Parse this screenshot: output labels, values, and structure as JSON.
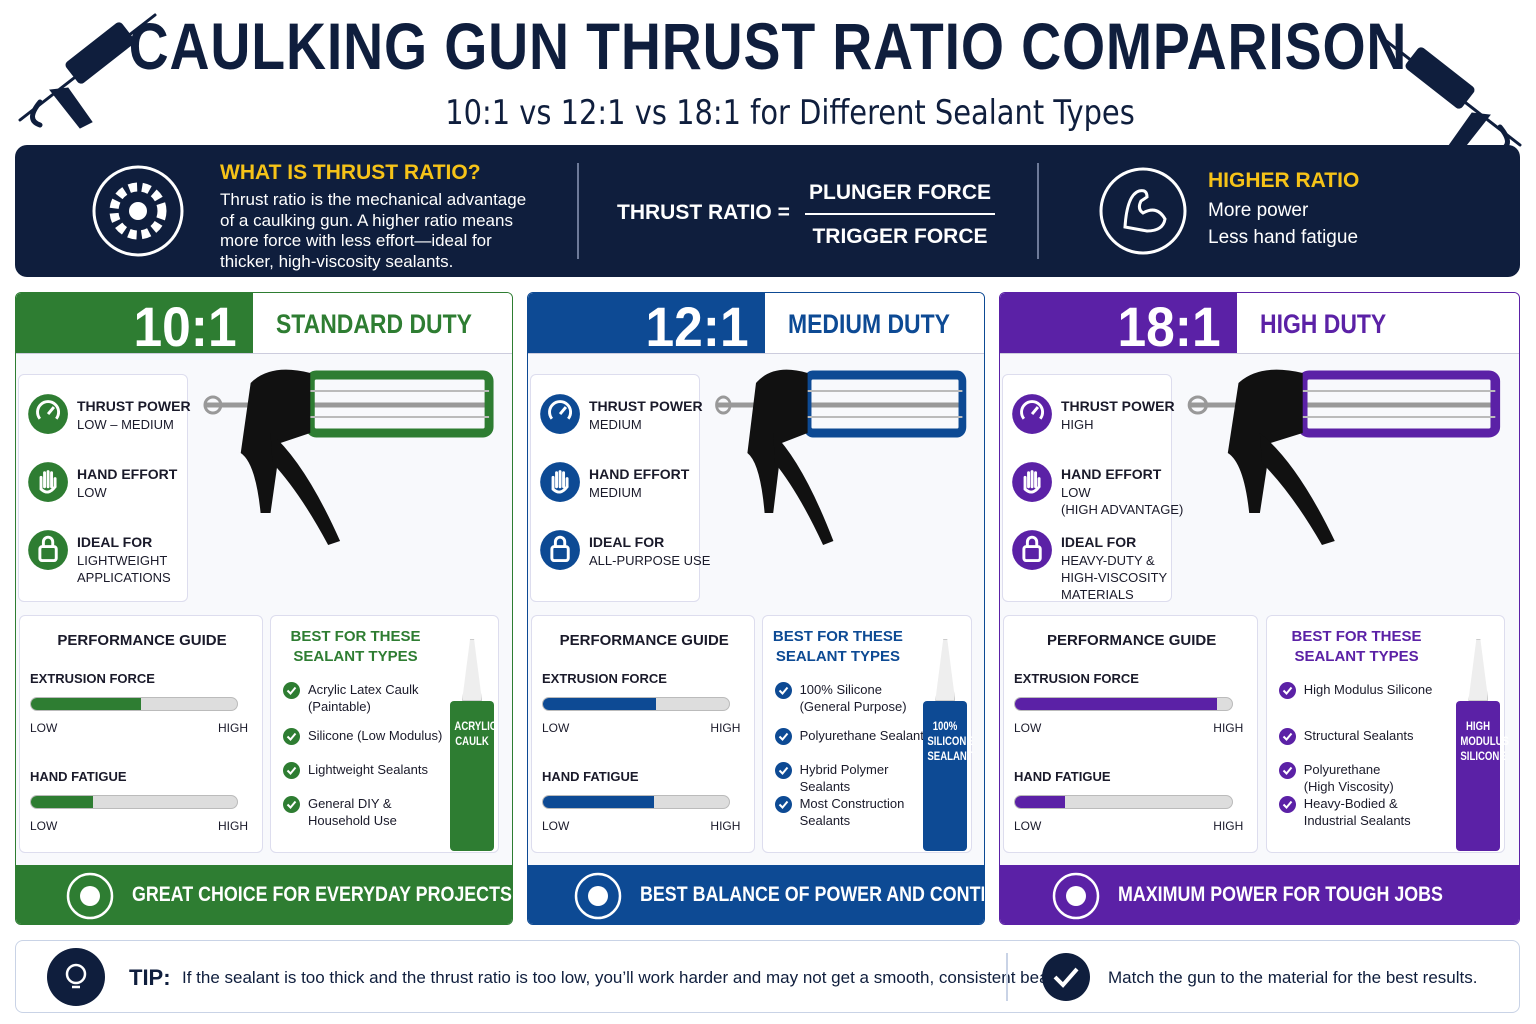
{
  "header": {
    "title": "CAULKING GUN THRUST RATIO COMPARISON",
    "subtitle": "10:1 vs 12:1 vs 18:1 for Different Sealant Types"
  },
  "intro": {
    "what_title": "WHAT IS THRUST RATIO?",
    "what_lines": [
      "Thrust ratio is the mechanical advantage",
      "of a caulking gun. A higher ratio means",
      "more force with less effort—ideal for",
      "thicker, high-viscosity sealants."
    ],
    "formula_label": "THRUST RATIO =",
    "numerator": "PLUNGER FORCE",
    "denominator": "TRIGGER FORCE",
    "higher_title": "HIGHER RATIO",
    "higher_lines": [
      "More power",
      "Less hand fatigue"
    ]
  },
  "panels": [
    {
      "ratio": "10:1",
      "duty": "STANDARD DUTY",
      "color": "#2e7d32",
      "features": [
        {
          "title": "THRUST POWER",
          "lines": [
            "LOW – MEDIUM"
          ]
        },
        {
          "title": "HAND EFFORT",
          "lines": [
            "LOW"
          ]
        },
        {
          "title": "IDEAL FOR",
          "lines": [
            "LIGHTWEIGHT",
            "APPLICATIONS"
          ]
        }
      ],
      "performance": {
        "title": "PERFORMANCE GUIDE",
        "xlim": [
          0,
          100
        ],
        "bars": [
          {
            "label": "EXTRUSION FORCE",
            "value": 53
          },
          {
            "label": "HAND FATIGUE",
            "value": 30
          }
        ],
        "low": "LOW",
        "high": "HIGH"
      },
      "best": {
        "title_lines": [
          "BEST FOR THESE",
          "SEALANT TYPES"
        ],
        "items": [
          [
            "Acrylic Latex Caulk",
            "(Paintable)"
          ],
          [
            "Silicone (Low Modulus)"
          ],
          [
            "Lightweight Sealants"
          ],
          [
            "General DIY &",
            "Household Use"
          ]
        ],
        "tube_lines": [
          "ACRYLIC",
          "CAULK"
        ]
      },
      "footer": "GREAT CHOICE FOR EVERYDAY PROJECTS"
    },
    {
      "ratio": "12:1",
      "duty": "MEDIUM DUTY",
      "color": "#0d4a94",
      "features": [
        {
          "title": "THRUST POWER",
          "lines": [
            "MEDIUM"
          ]
        },
        {
          "title": "HAND EFFORT",
          "lines": [
            "MEDIUM"
          ]
        },
        {
          "title": "IDEAL FOR",
          "lines": [
            "ALL-PURPOSE USE"
          ]
        }
      ],
      "performance": {
        "title": "PERFORMANCE GUIDE",
        "xlim": [
          0,
          100
        ],
        "bars": [
          {
            "label": "EXTRUSION FORCE",
            "value": 60
          },
          {
            "label": "HAND FATIGUE",
            "value": 59
          }
        ],
        "low": "LOW",
        "high": "HIGH"
      },
      "best": {
        "title_lines": [
          "BEST FOR THESE",
          "SEALANT TYPES"
        ],
        "items": [
          [
            "100% Silicone",
            "(General Purpose)"
          ],
          [
            "Polyurethane Sealants"
          ],
          [
            "Hybrid Polymer",
            "Sealants"
          ],
          [
            "Most Construction",
            "Sealants"
          ]
        ],
        "tube_lines": [
          "100%",
          "SILICONE",
          "SEALANT"
        ]
      },
      "footer": "BEST BALANCE OF POWER AND CONTROL"
    },
    {
      "ratio": "18:1",
      "duty": "HIGH DUTY",
      "color": "#5b21a6",
      "features": [
        {
          "title": "THRUST POWER",
          "lines": [
            "HIGH"
          ]
        },
        {
          "title": "HAND EFFORT",
          "lines": [
            "LOW",
            "(HIGH ADVANTAGE)"
          ]
        },
        {
          "title": "IDEAL FOR",
          "lines": [
            "HEAVY-DUTY &",
            "HIGH-VISCOSITY",
            "MATERIALS"
          ]
        }
      ],
      "performance": {
        "title": "PERFORMANCE GUIDE",
        "xlim": [
          0,
          100
        ],
        "bars": [
          {
            "label": "EXTRUSION FORCE",
            "value": 92
          },
          {
            "label": "HAND FATIGUE",
            "value": 23
          }
        ],
        "low": "LOW",
        "high": "HIGH"
      },
      "best": {
        "title_lines": [
          "BEST FOR THESE",
          "SEALANT TYPES"
        ],
        "items": [
          [
            "High Modulus Silicone"
          ],
          [
            "Structural Sealants"
          ],
          [
            "Polyurethane",
            "(High Viscosity)"
          ],
          [
            "Heavy-Bodied &",
            "Industrial Sealants"
          ]
        ],
        "tube_lines": [
          "HIGH",
          "MODULUS",
          "SILICONE"
        ]
      },
      "footer": "MAXIMUM POWER FOR TOUGH JOBS"
    }
  ],
  "tip": {
    "label": "TIP:",
    "text": "If the sealant is too thick and the thrust ratio is too low, you’ll work harder and may not get a smooth, consistent bead.",
    "check": "Match the gun to the material for the best results."
  }
}
